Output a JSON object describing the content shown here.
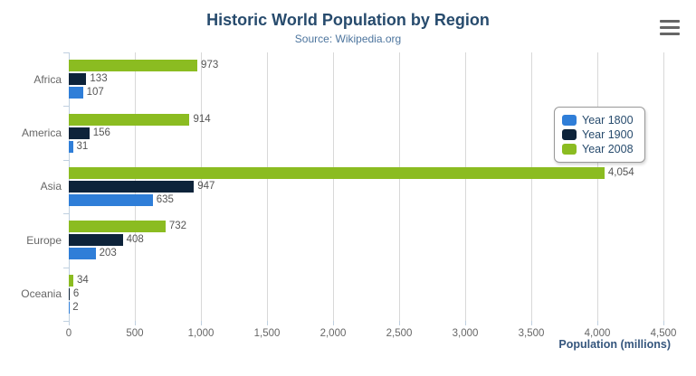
{
  "header": {
    "title": "Historic World Population by Region",
    "subtitle": "Source: Wikipedia.org"
  },
  "toolbar": {
    "context_menu_icon": "hamburger-icon"
  },
  "chart_data": {
    "type": "bar",
    "orientation": "horizontal",
    "title": "Historic World Population by Region",
    "subtitle": "Source: Wikipedia.org",
    "categories": [
      "Africa",
      "America",
      "Asia",
      "Europe",
      "Oceania"
    ],
    "series": [
      {
        "name": "Year 1800",
        "color": "#2f7ed8",
        "values": [
          107,
          31,
          635,
          203,
          2
        ]
      },
      {
        "name": "Year 1900",
        "color": "#0d233a",
        "values": [
          133,
          156,
          947,
          408,
          6
        ]
      },
      {
        "name": "Year 2008",
        "color": "#8bbc21",
        "values": [
          973,
          914,
          4054,
          732,
          34
        ]
      }
    ],
    "bar_order_top_to_bottom": [
      "Year 2008",
      "Year 1900",
      "Year 1800"
    ],
    "data_labels": true,
    "xlabel": "Population (millions)",
    "xlim": [
      0,
      4500
    ],
    "xticks": [
      "0",
      "500",
      "1,000",
      "1,500",
      "2,000",
      "2,500",
      "3,000",
      "3,500",
      "4,000",
      "4,500"
    ],
    "grid": true,
    "legend_position": "right"
  },
  "colors": {
    "title": "#274b6d",
    "subtitle": "#4d759e",
    "axis_title": "#35567d",
    "tick_label": "#666666",
    "data_label": "#555555",
    "gridline": "#d8d8d8",
    "axis_line": "#c0d0e0",
    "legend_border": "#999999",
    "background": "#ffffff"
  }
}
